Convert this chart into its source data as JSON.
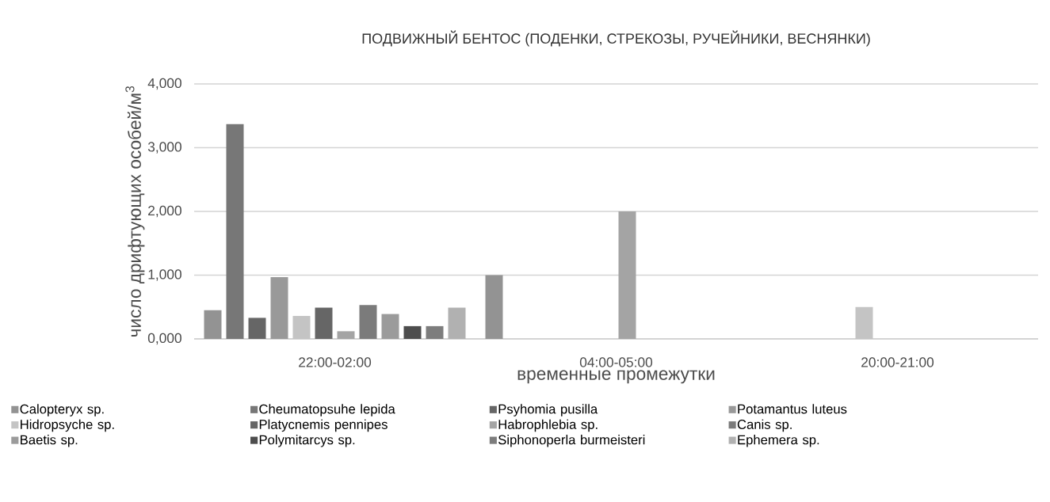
{
  "chart_data": {
    "type": "bar",
    "title": "ПОДВИЖНЫЙ БЕНТОС (ПОДЕНКИ, СТРЕКОЗЫ, РУЧЕЙНИКИ, ВЕСНЯНКИ)",
    "xlabel": "временные промежутки",
    "ylabel": "число дрифтующих особей/м$^{3}$",
    "categories": [
      "22:00-02:00",
      "04:00-05:00",
      "20:00-21:00"
    ],
    "series": [
      {
        "name": "Calopteryx sp.",
        "color": "#939393",
        "values": [
          450,
          1000,
          null
        ]
      },
      {
        "name": "Cheumatopsuhe lepida",
        "color": "#777777",
        "values": [
          3370,
          null,
          null
        ]
      },
      {
        "name": "Psyhomia pusilla",
        "color": "#666666",
        "values": [
          330,
          null,
          null
        ]
      },
      {
        "name": "Potamantus luteus",
        "color": "#999999",
        "values": [
          970,
          null,
          null
        ]
      },
      {
        "name": "Hidropsyche sp.",
        "color": "#c4c4c4",
        "values": [
          360,
          null,
          500
        ]
      },
      {
        "name": "Platycnemis pennipes",
        "color": "#666666",
        "values": [
          490,
          null,
          null
        ]
      },
      {
        "name": "Habrophlebia sp.",
        "color": "#a4a4a4",
        "values": [
          120,
          2000,
          null
        ]
      },
      {
        "name": "Canis sp.",
        "color": "#7b7b7b",
        "values": [
          530,
          null,
          null
        ]
      },
      {
        "name": "Baetis sp.",
        "color": "#9b9b9b",
        "values": [
          390,
          null,
          null
        ]
      },
      {
        "name": "Polymitarcys sp.",
        "color": "#4d4d4d",
        "values": [
          200,
          null,
          null
        ]
      },
      {
        "name": "Siphonoperla burmeisteri",
        "color": "#7d7d7d",
        "values": [
          200,
          null,
          null
        ]
      },
      {
        "name": "Ephemera sp.",
        "color": "#b1b1b1",
        "values": [
          490,
          null,
          null
        ]
      }
    ],
    "ylim": [
      0,
      4000
    ],
    "yticks": [
      {
        "value": 0,
        "label": "0,000"
      },
      {
        "value": 1000,
        "label": "1,000"
      },
      {
        "value": 2000,
        "label": "2,000"
      },
      {
        "value": 3000,
        "label": "3,000"
      },
      {
        "value": 4000,
        "label": "4,000"
      }
    ],
    "grid": "y",
    "legend": "bottom"
  }
}
